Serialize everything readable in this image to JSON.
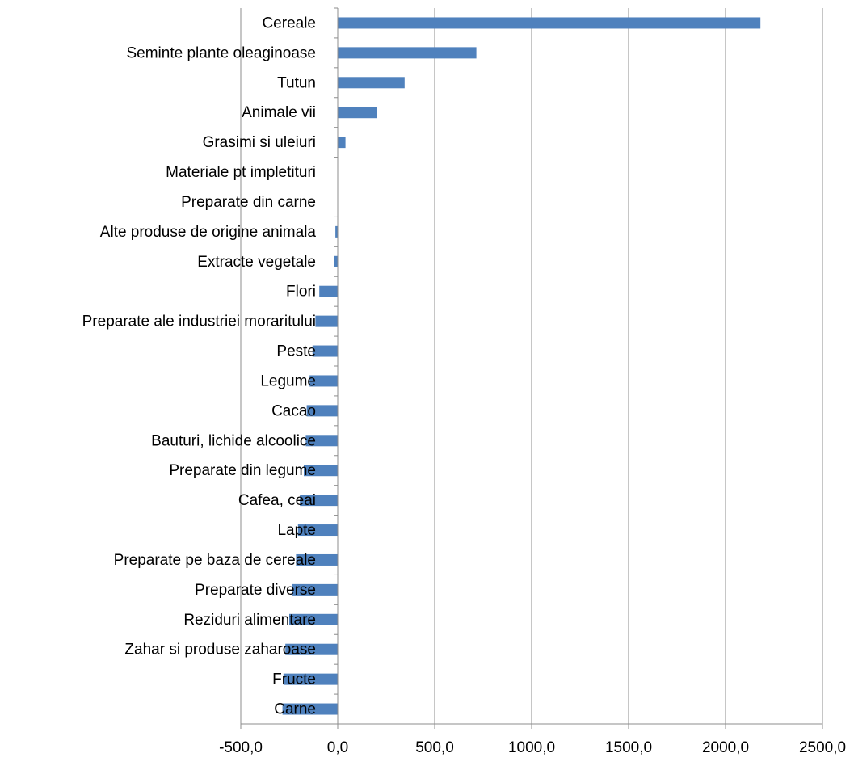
{
  "chart_data": {
    "type": "bar",
    "orientation": "horizontal",
    "title": "",
    "xlabel": "",
    "ylabel": "",
    "xlim": [
      -500,
      2500
    ],
    "x_ticks": [
      -500,
      0,
      500,
      1000,
      1500,
      2000,
      2500
    ],
    "x_tick_labels": [
      "-500,0",
      "0,0",
      "500,0",
      "1000,0",
      "1500,0",
      "2000,0",
      "2500,0"
    ],
    "grid": "vertical",
    "legend": "none",
    "bar_color": "#4f81bd",
    "categories": [
      "Cereale",
      "Seminte plante oleaginoase",
      "Tutun",
      "Animale vii",
      "Grasimi si uleiuri",
      "Materiale pt impletituri",
      "Preparate din carne",
      "Alte produse de origine animala",
      "Extracte vegetale",
      "Flori",
      "Preparate ale industriei moraritului",
      "Peste",
      "Legume",
      "Cacao",
      "Bauturi, lichide alcoolice",
      "Preparate din legume",
      "Cafea, ceai",
      "Lapte",
      "Preparate pe baza de cereale",
      "Preparate diverse",
      "Reziduri alimentare",
      "Zahar si produse zaharoase",
      "Fructe",
      "Carne"
    ],
    "values": [
      2180,
      715,
      345,
      200,
      40,
      0,
      0,
      -12,
      -20,
      -95,
      -115,
      -130,
      -145,
      -160,
      -165,
      -175,
      -195,
      -205,
      -215,
      -235,
      -250,
      -270,
      -280,
      -285
    ]
  }
}
